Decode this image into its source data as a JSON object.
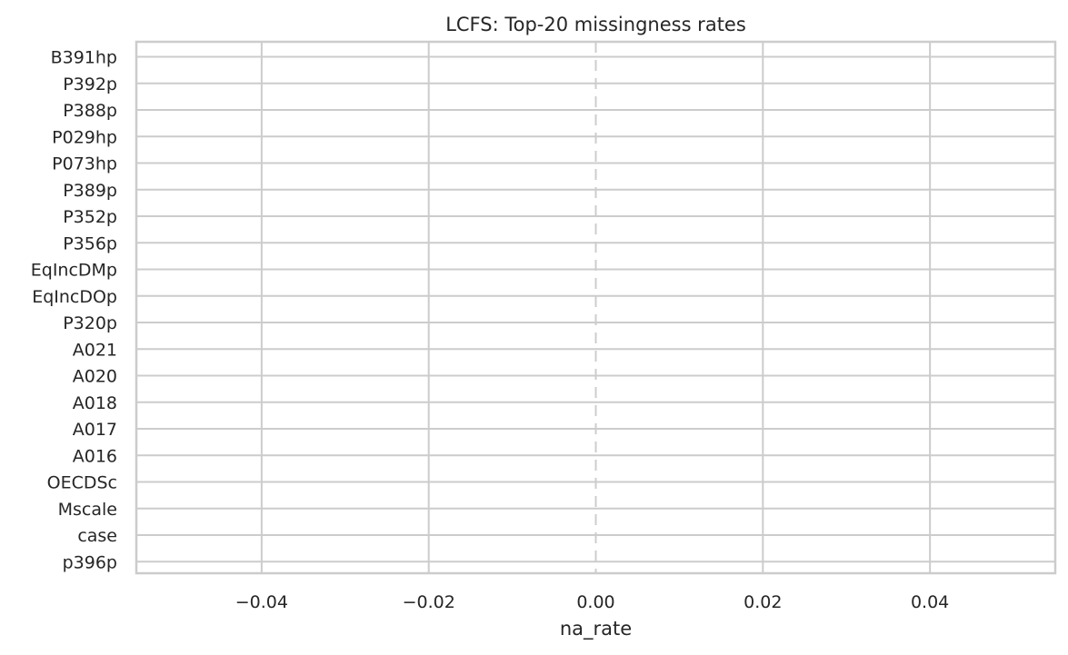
{
  "chart_data": {
    "type": "bar",
    "orientation": "horizontal",
    "title": "LCFS: Top-20 missingness rates",
    "xlabel": "na_rate",
    "ylabel": "",
    "categories": [
      "B391hp",
      "P392p",
      "P388p",
      "P029hp",
      "P073hp",
      "P389p",
      "P352p",
      "P356p",
      "EqIncDMp",
      "EqIncDOp",
      "P320p",
      "A021",
      "A020",
      "A018",
      "A017",
      "A016",
      "OECDSc",
      "Mscale",
      "case",
      "p396p"
    ],
    "values": [
      0,
      0,
      0,
      0,
      0,
      0,
      0,
      0,
      0,
      0,
      0,
      0,
      0,
      0,
      0,
      0,
      0,
      0,
      0,
      0
    ],
    "xlim": [
      -0.055,
      0.055
    ],
    "xticks": [
      -0.04,
      -0.02,
      0.0,
      0.02,
      0.04
    ],
    "xtick_labels": [
      "−0.04",
      "−0.02",
      "0.00",
      "0.02",
      "0.04"
    ],
    "reference_line": {
      "x": 0,
      "style": "dashed"
    },
    "grid": true,
    "legend": "none",
    "colors": {
      "grid": "#cccccc",
      "spine": "#cccccc",
      "reference_line": "#cccccc",
      "bar": "#4c72b0",
      "text": "#262626"
    }
  }
}
